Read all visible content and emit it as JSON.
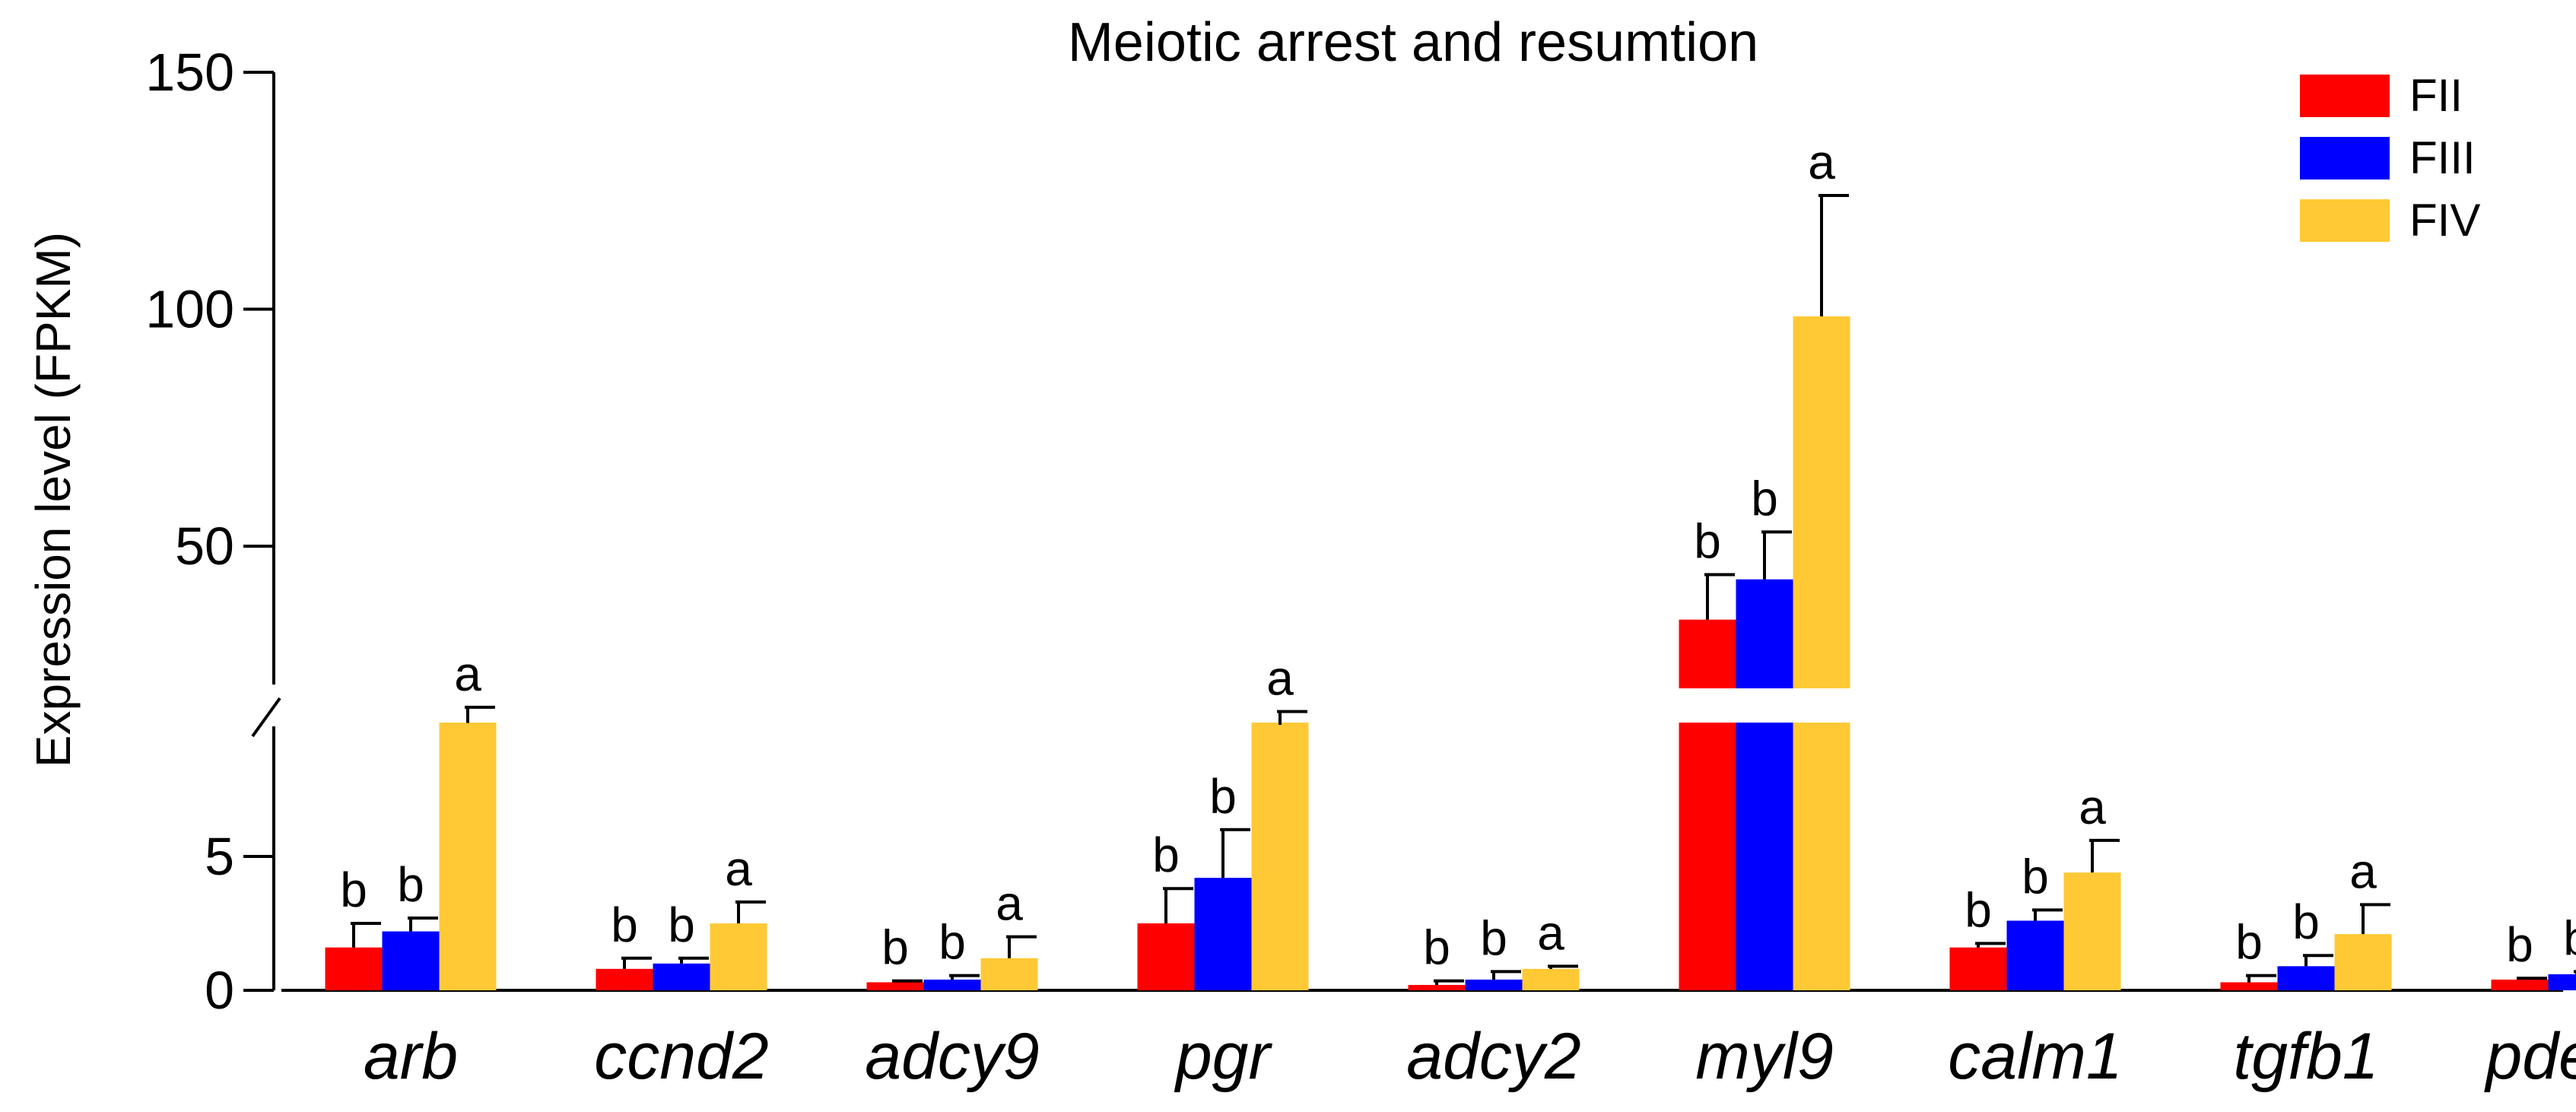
{
  "chart_data": {
    "type": "bar",
    "title": "Meiotic arrest and resumtion",
    "ylabel": "Expression level (FPKM)",
    "xlabel": "",
    "axis_break": {
      "lower_range": [
        0,
        10
      ],
      "upper_range": [
        20,
        150
      ]
    },
    "lower_ticks": [
      {
        "value": 0,
        "label": "0"
      },
      {
        "value": 5,
        "label": "5"
      }
    ],
    "upper_ticks": [
      {
        "value": 50,
        "label": "50"
      },
      {
        "value": 100,
        "label": "100"
      },
      {
        "value": 150,
        "label": "150"
      }
    ],
    "categories": [
      "arb",
      "ccnd2",
      "adcy9",
      "pgr",
      "adcy2",
      "myl9",
      "calm1",
      "tgfb1",
      "pde3b"
    ],
    "legend_position": "top-right",
    "series": [
      {
        "name": "FII",
        "color": "#ff0000",
        "values": [
          1.6,
          0.8,
          0.3,
          2.5,
          0.2,
          34.5,
          1.6,
          0.3,
          0.4
        ],
        "errors": [
          0.9,
          0.4,
          0.05,
          1.3,
          0.15,
          9.5,
          0.15,
          0.25,
          0.05
        ],
        "letters": [
          "b",
          "b",
          "b",
          "b",
          "b",
          "b",
          "b",
          "b",
          "b"
        ]
      },
      {
        "name": "FIII",
        "color": "#0000ff",
        "values": [
          2.2,
          1.0,
          0.4,
          4.2,
          0.4,
          43.0,
          2.6,
          0.9,
          0.6
        ],
        "errors": [
          0.5,
          0.2,
          0.15,
          1.8,
          0.3,
          10.0,
          0.4,
          0.4,
          0.1
        ],
        "letters": [
          "b",
          "b",
          "b",
          "b",
          "b",
          "b",
          "b",
          "b",
          "b"
        ]
      },
      {
        "name": "FIV",
        "color": "#ffc936",
        "values": [
          12.7,
          2.5,
          1.2,
          12.3,
          0.8,
          98.5,
          4.4,
          2.1,
          1.1
        ],
        "errors": [
          3.3,
          0.8,
          0.8,
          2.8,
          0.1,
          25.5,
          1.2,
          1.1,
          0.3
        ],
        "letters": [
          "a",
          "a",
          "a",
          "a",
          "a",
          "a",
          "a",
          "a",
          "a"
        ]
      }
    ]
  }
}
